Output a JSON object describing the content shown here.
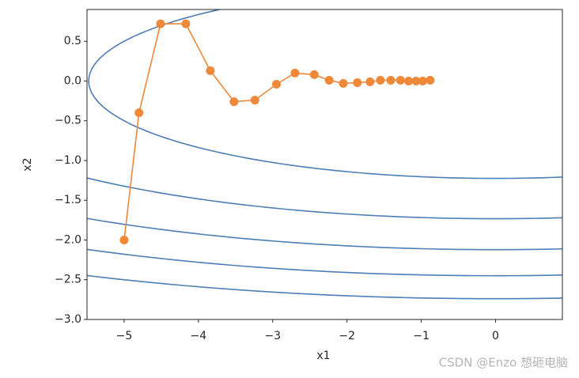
{
  "chart_data": {
    "type": "contour-trajectory",
    "xlabel": "x1",
    "ylabel": "x2",
    "xlim": [
      -5.5,
      0.9
    ],
    "ylim": [
      -3.0,
      0.9
    ],
    "xticks": [
      {
        "value": -5,
        "label": "−5"
      },
      {
        "value": -4,
        "label": "−4"
      },
      {
        "value": -3,
        "label": "−3"
      },
      {
        "value": -2,
        "label": "−2"
      },
      {
        "value": -1,
        "label": "−1"
      },
      0
    ],
    "yticks": [
      {
        "value": 0.5,
        "label": "0.5"
      },
      {
        "value": 0,
        "label": "0.0"
      },
      {
        "value": -0.5,
        "label": "−0.5"
      },
      {
        "value": -1,
        "label": "−1.0"
      },
      {
        "value": -1.5,
        "label": "−1.5"
      },
      {
        "value": -2,
        "label": "−2.0"
      },
      {
        "value": -2.5,
        "label": "−2.5"
      },
      {
        "value": -3,
        "label": "−3.0"
      }
    ],
    "contour": {
      "color": "#4c7db5",
      "coefficients": [
        0.1,
        2
      ],
      "levels": [
        3,
        6,
        9,
        12,
        15
      ]
    },
    "trajectory": {
      "color": "#f0883a",
      "x": [
        -5.0,
        -4.8,
        -4.51,
        -4.17,
        -3.84,
        -3.52,
        -3.24,
        -2.95,
        -2.7,
        -2.44,
        -2.24,
        -2.05,
        -1.86,
        -1.69,
        -1.55,
        -1.41,
        -1.28,
        -1.17,
        -1.07,
        -0.98,
        -0.88
      ],
      "values": [
        -2.0,
        -0.4,
        0.72,
        0.72,
        0.13,
        -0.26,
        -0.24,
        -0.04,
        0.1,
        0.08,
        0.01,
        -0.03,
        -0.02,
        -0.01,
        0.01,
        0.01,
        0.01,
        0,
        0,
        0,
        0.01
      ]
    },
    "watermark": "CSDN @Enzo 想砸电脑"
  }
}
